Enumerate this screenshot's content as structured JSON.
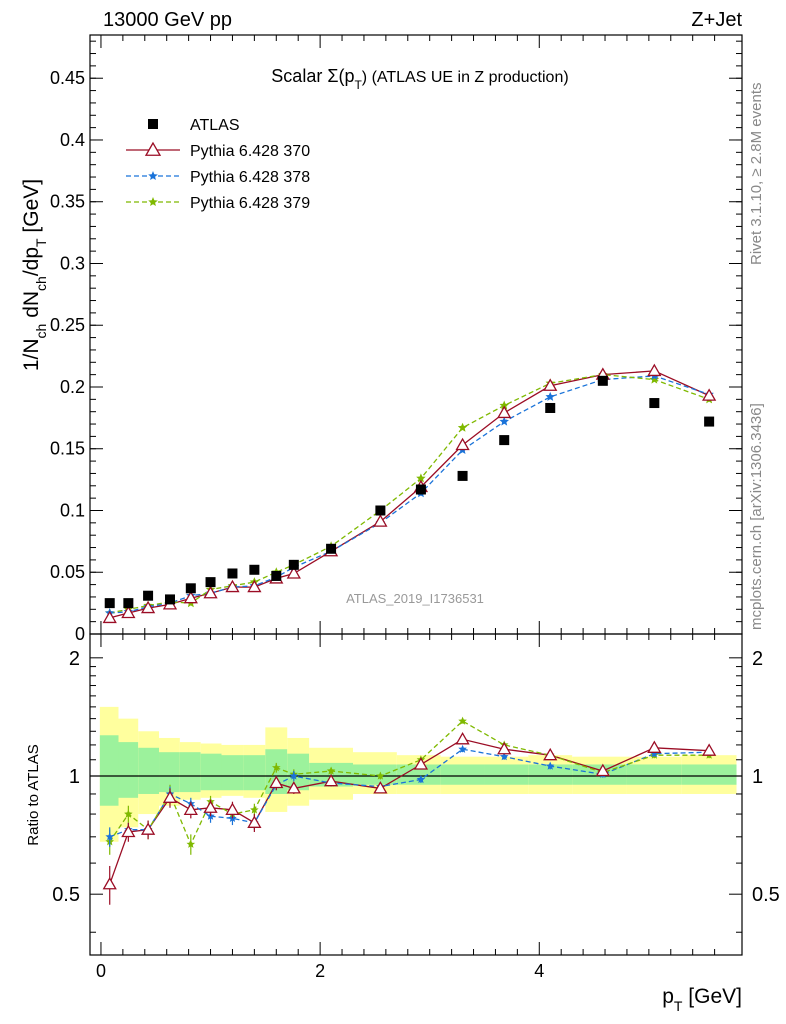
{
  "header": {
    "left": "13000 GeV pp",
    "right": "Z+Jet"
  },
  "side_labels": {
    "top": "Rivet 3.1.10, ≥ 2.8M events",
    "bottom": "mcplots.cern.ch [arXiv:1306.3436]"
  },
  "plot_title": "Scalar Σ(p_T) (ATLAS UE in Z production)",
  "watermark": "ATLAS_2019_I1736531",
  "chart_data": [
    {
      "type": "scatter",
      "title": "Scalar Σ(p_T) (ATLAS UE in Z production)",
      "ylabel": "1/N_ch dN_ch/dp_T [GeV]",
      "xlabel": "p_T [GeV]",
      "xlim": [
        -0.1,
        5.85
      ],
      "ylim": [
        0,
        0.485
      ],
      "yticks": [
        0,
        0.05,
        0.1,
        0.15,
        0.2,
        0.25,
        0.3,
        0.35,
        0.4,
        0.45
      ],
      "ytick_labels": [
        "0",
        "0.05",
        "0.1",
        "0.15",
        "0.2",
        "0.25",
        "0.3",
        "0.35",
        "0.4",
        "0.45"
      ],
      "legend": "top-left",
      "x": [
        0.08,
        0.25,
        0.43,
        0.63,
        0.82,
        1.0,
        1.2,
        1.4,
        1.6,
        1.76,
        2.1,
        2.55,
        2.92,
        3.3,
        3.68,
        4.1,
        4.58,
        5.05,
        5.55
      ],
      "series": [
        {
          "name": "ATLAS",
          "color": "#000000",
          "marker": "square",
          "values": [
            0.025,
            0.025,
            0.031,
            0.028,
            0.037,
            0.042,
            0.049,
            0.052,
            0.047,
            0.056,
            0.069,
            0.1,
            0.117,
            0.128,
            0.157,
            0.183,
            0.205,
            0.187,
            0.172
          ]
        },
        {
          "name": "Pythia 6.428 370",
          "color": "#9b0d25",
          "marker": "triangle",
          "dash": "",
          "values": [
            0.013,
            0.017,
            0.021,
            0.024,
            0.029,
            0.033,
            0.038,
            0.038,
            0.045,
            0.049,
            0.067,
            0.091,
            0.119,
            0.153,
            0.179,
            0.201,
            0.21,
            0.213,
            0.193
          ]
        },
        {
          "name": "Pythia 6.428 378",
          "color": "#1a73d9",
          "marker": "star",
          "dash": "5,3",
          "values": [
            0.017,
            0.018,
            0.022,
            0.025,
            0.031,
            0.033,
            0.038,
            0.039,
            0.046,
            0.054,
            0.067,
            0.09,
            0.114,
            0.149,
            0.172,
            0.192,
            0.206,
            0.209,
            0.194
          ]
        },
        {
          "name": "Pythia 6.428 379",
          "color": "#7fb900",
          "marker": "star",
          "dash": "5,3",
          "values": [
            0.017,
            0.02,
            0.023,
            0.026,
            0.025,
            0.036,
            0.039,
            0.042,
            0.05,
            0.056,
            0.071,
            0.1,
            0.126,
            0.167,
            0.185,
            0.203,
            0.21,
            0.206,
            0.19
          ]
        }
      ]
    },
    {
      "type": "scatter",
      "ylabel": "Ratio to ATLAS",
      "xlabel": "p_T [GeV]",
      "xlim": [
        -0.1,
        5.85
      ],
      "ylim": [
        0.35,
        2.3
      ],
      "yscale": "log",
      "yticks": [
        0.5,
        1,
        2
      ],
      "ytick_labels": [
        "0.5",
        "1",
        "2"
      ],
      "xticks": [
        0,
        2,
        4
      ],
      "xtick_labels": [
        "0",
        "2",
        "4"
      ],
      "x": [
        0.08,
        0.25,
        0.43,
        0.63,
        0.82,
        1.0,
        1.2,
        1.4,
        1.6,
        1.76,
        2.1,
        2.55,
        2.92,
        3.3,
        3.68,
        4.1,
        4.58,
        5.05,
        5.55
      ],
      "bins": [
        [
          -0.01,
          0.16
        ],
        [
          0.16,
          0.34
        ],
        [
          0.34,
          0.53
        ],
        [
          0.53,
          0.72
        ],
        [
          0.72,
          0.91
        ],
        [
          0.91,
          1.1
        ],
        [
          1.1,
          1.3
        ],
        [
          1.3,
          1.5
        ],
        [
          1.5,
          1.7
        ],
        [
          1.7,
          1.9
        ],
        [
          1.9,
          2.3
        ],
        [
          2.3,
          2.7
        ],
        [
          2.7,
          3.1
        ],
        [
          3.1,
          3.5
        ],
        [
          3.5,
          3.9
        ],
        [
          3.9,
          4.3
        ],
        [
          4.3,
          4.8
        ],
        [
          4.8,
          5.3
        ],
        [
          5.3,
          5.8
        ]
      ],
      "band_total": [
        [
          0.68,
          1.5
        ],
        [
          0.74,
          1.4
        ],
        [
          0.8,
          1.3
        ],
        [
          0.84,
          1.25
        ],
        [
          0.87,
          1.22
        ],
        [
          0.88,
          1.21
        ],
        [
          0.89,
          1.2
        ],
        [
          0.88,
          1.2
        ],
        [
          0.81,
          1.33
        ],
        [
          0.84,
          1.25
        ],
        [
          0.87,
          1.18
        ],
        [
          0.9,
          1.15
        ],
        [
          0.9,
          1.13
        ],
        [
          0.9,
          1.12
        ],
        [
          0.9,
          1.12
        ],
        [
          0.9,
          1.13
        ],
        [
          0.9,
          1.12
        ],
        [
          0.9,
          1.12
        ],
        [
          0.9,
          1.13
        ]
      ],
      "band_stat": [
        [
          0.84,
          1.27
        ],
        [
          0.88,
          1.22
        ],
        [
          0.9,
          1.18
        ],
        [
          0.91,
          1.15
        ],
        [
          0.91,
          1.15
        ],
        [
          0.92,
          1.14
        ],
        [
          0.92,
          1.13
        ],
        [
          0.92,
          1.13
        ],
        [
          0.9,
          1.17
        ],
        [
          0.92,
          1.14
        ],
        [
          0.94,
          1.08
        ],
        [
          0.95,
          1.07
        ],
        [
          0.95,
          1.07
        ],
        [
          0.95,
          1.07
        ],
        [
          0.95,
          1.07
        ],
        [
          0.95,
          1.07
        ],
        [
          0.95,
          1.07
        ],
        [
          0.95,
          1.07
        ],
        [
          0.95,
          1.07
        ]
      ],
      "series": [
        {
          "name": "Pythia 6.428 370",
          "color": "#9b0d25",
          "marker": "triangle",
          "dash": "",
          "values": [
            0.53,
            0.72,
            0.73,
            0.88,
            0.82,
            0.83,
            0.82,
            0.76,
            0.96,
            0.93,
            0.97,
            0.93,
            1.07,
            1.24,
            1.17,
            1.13,
            1.03,
            1.18,
            1.16
          ],
          "errors": [
            0.06,
            0.04,
            0.04,
            0.05,
            0.04,
            0.04,
            0.04,
            0.04,
            0.04,
            0.03,
            0.02,
            0.02,
            0.02,
            0.02,
            0.02,
            0.02,
            0.02,
            0.02,
            0.02
          ]
        },
        {
          "name": "Pythia 6.428 378",
          "color": "#1a73d9",
          "marker": "star",
          "dash": "5,3",
          "values": [
            0.7,
            0.73,
            0.73,
            0.9,
            0.85,
            0.79,
            0.78,
            0.76,
            0.95,
            1.0,
            0.96,
            0.94,
            0.98,
            1.17,
            1.12,
            1.06,
            1.01,
            1.14,
            1.15
          ],
          "errors": [
            0.04,
            0.03,
            0.03,
            0.04,
            0.03,
            0.03,
            0.03,
            0.03,
            0.03,
            0.03,
            0.02,
            0.02,
            0.02,
            0.02,
            0.02,
            0.02,
            0.02,
            0.02,
            0.02
          ]
        },
        {
          "name": "Pythia 6.428 379",
          "color": "#7fb900",
          "marker": "star",
          "dash": "5,3",
          "values": [
            0.68,
            0.8,
            0.73,
            0.9,
            0.67,
            0.86,
            0.8,
            0.82,
            1.05,
            1.01,
            1.03,
            1.0,
            1.1,
            1.38,
            1.2,
            1.13,
            1.02,
            1.13,
            1.13
          ],
          "errors": [
            0.05,
            0.04,
            0.04,
            0.05,
            0.04,
            0.03,
            0.03,
            0.03,
            0.03,
            0.03,
            0.02,
            0.02,
            0.02,
            0.02,
            0.02,
            0.02,
            0.02,
            0.02,
            0.02
          ]
        }
      ]
    }
  ]
}
